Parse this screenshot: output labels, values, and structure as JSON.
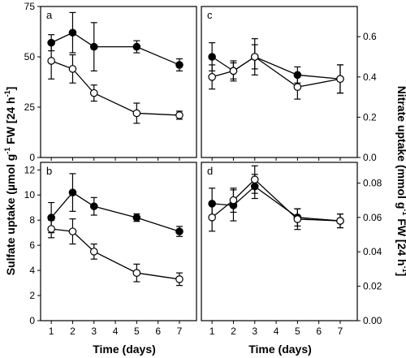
{
  "chart_data": [
    {
      "panel": "a",
      "type": "line",
      "y_axis_side": "left",
      "ylim": [
        0,
        75
      ],
      "yticks": [
        "0",
        "25",
        "50",
        "75"
      ],
      "xlim": [
        0.5,
        7.8
      ],
      "series": [
        {
          "marker": "filled",
          "x": [
            1,
            2,
            3,
            5,
            7
          ],
          "y": [
            57,
            62,
            55,
            55,
            46
          ],
          "err": [
            4,
            10,
            12,
            3,
            3
          ]
        },
        {
          "marker": "open",
          "x": [
            1,
            2,
            3,
            5,
            7
          ],
          "y": [
            48,
            44,
            32,
            22,
            21
          ],
          "err": [
            9,
            7,
            4,
            5,
            2
          ]
        }
      ]
    },
    {
      "panel": "b",
      "type": "line",
      "y_axis_side": "left",
      "ylim": [
        0,
        12.6
      ],
      "yticks": [
        "0",
        "2",
        "4",
        "6",
        "8",
        "10",
        "12"
      ],
      "xlim": [
        0.5,
        7.8
      ],
      "xticks": [
        "1",
        "2",
        "3",
        "4",
        "5",
        "6",
        "7"
      ],
      "series": [
        {
          "marker": "filled",
          "x": [
            1,
            2,
            3,
            5,
            7
          ],
          "y": [
            8.2,
            10.2,
            9.1,
            8.2,
            7.1
          ],
          "err": [
            1.2,
            1.5,
            0.7,
            0.3,
            0.4
          ]
        },
        {
          "marker": "open",
          "x": [
            1,
            2,
            3,
            5,
            7
          ],
          "y": [
            7.3,
            7.1,
            5.5,
            3.8,
            3.3
          ],
          "err": [
            0.7,
            1.0,
            0.6,
            0.7,
            0.5
          ]
        }
      ]
    },
    {
      "panel": "c",
      "type": "line",
      "y_axis_side": "right",
      "ylim": [
        0,
        0.75
      ],
      "yticks": [
        "0.0",
        "0.2",
        "0.4",
        "0.6"
      ],
      "xlim": [
        0.5,
        7.8
      ],
      "series": [
        {
          "marker": "filled",
          "x": [
            1,
            2,
            3,
            5,
            7
          ],
          "y": [
            0.5,
            0.43,
            0.5,
            0.41,
            0.39
          ],
          "err": [
            0.07,
            0.05,
            0.09,
            0.04,
            0.07
          ]
        },
        {
          "marker": "open",
          "x": [
            1,
            2,
            3,
            5,
            7
          ],
          "y": [
            0.4,
            0.43,
            0.5,
            0.35,
            0.39
          ],
          "err": [
            0.06,
            0.04,
            0.06,
            0.06,
            0.07
          ]
        }
      ]
    },
    {
      "panel": "d",
      "type": "line",
      "y_axis_side": "right",
      "ylim": [
        0,
        0.092
      ],
      "yticks": [
        "0.00",
        "0.02",
        "0.04",
        "0.06",
        "0.08"
      ],
      "xlim": [
        0.5,
        7.8
      ],
      "xticks": [
        "1",
        "2",
        "3",
        "4",
        "5",
        "6",
        "7"
      ],
      "series": [
        {
          "marker": "filled",
          "x": [
            1,
            2,
            3,
            5,
            7
          ],
          "y": [
            0.068,
            0.067,
            0.078,
            0.06,
            0.058
          ],
          "err": [
            0.009,
            0.009,
            0.007,
            0.005,
            0.004
          ]
        },
        {
          "marker": "open",
          "x": [
            1,
            2,
            3,
            5,
            7
          ],
          "y": [
            0.06,
            0.07,
            0.082,
            0.059,
            0.058
          ],
          "err": [
            0.008,
            0.007,
            0.008,
            0.006,
            0.004
          ]
        }
      ]
    }
  ],
  "axes": {
    "xlabel_left": "Time (days)",
    "xlabel_right": "Time (days)",
    "ylabel_left_prefix": "Sulfate uptake (µmol g",
    "ylabel_left_exp1": "-1",
    "ylabel_left_mid": " FW [24 h",
    "ylabel_left_exp2": "-1",
    "ylabel_left_suffix": "]",
    "ylabel_right_prefix": "Nitrate uptake (mmol g",
    "ylabel_right_exp1": "-1",
    "ylabel_right_mid": " FW [24 h",
    "ylabel_right_exp2": "-1",
    "ylabel_right_suffix": "]"
  }
}
